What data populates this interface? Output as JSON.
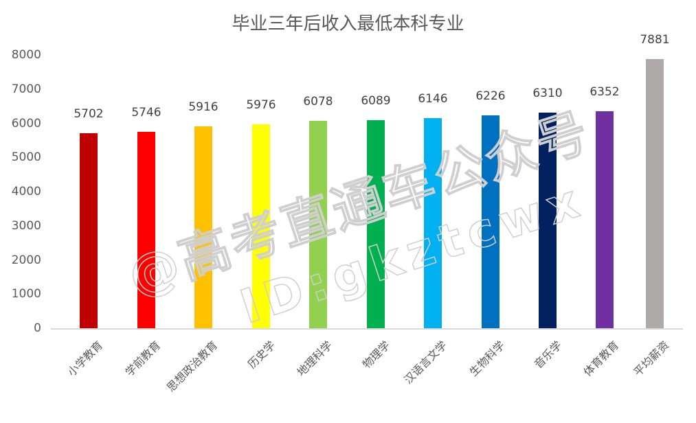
{
  "chart_data": {
    "type": "bar",
    "title": "毕业三年后收入最低本科专业",
    "xlabel": "",
    "ylabel": "",
    "ylim": [
      0,
      8000
    ],
    "yticks": [
      0,
      1000,
      2000,
      3000,
      4000,
      5000,
      6000,
      7000,
      8000
    ],
    "grid": false,
    "legend": "none",
    "categories": [
      "小学教育",
      "学前教育",
      "思想政治教育",
      "历史学",
      "地理科学",
      "物理学",
      "汉语言文学",
      "生物科学",
      "音乐学",
      "体育教育",
      "平均薪资"
    ],
    "values": [
      5702,
      5746,
      5916,
      5976,
      6078,
      6089,
      6146,
      6226,
      6310,
      6352,
      7881
    ],
    "colors": [
      "#c00000",
      "#ff0000",
      "#ffc000",
      "#ffff00",
      "#92d050",
      "#00b050",
      "#00b0f0",
      "#0070c0",
      "#002060",
      "#7030a0",
      "#aeaaaa"
    ],
    "data_labels": [
      "5702",
      "5746",
      "5916",
      "5976",
      "6078",
      "6089",
      "6146",
      "6226",
      "6310",
      "6352",
      "7881"
    ]
  },
  "yaxis_labels": [
    "0",
    "1000",
    "2000",
    "3000",
    "4000",
    "5000",
    "6000",
    "7000",
    "8000"
  ],
  "watermark": {
    "line1": "@高考直通车公众号",
    "line2": "ID:gkztcwx"
  }
}
